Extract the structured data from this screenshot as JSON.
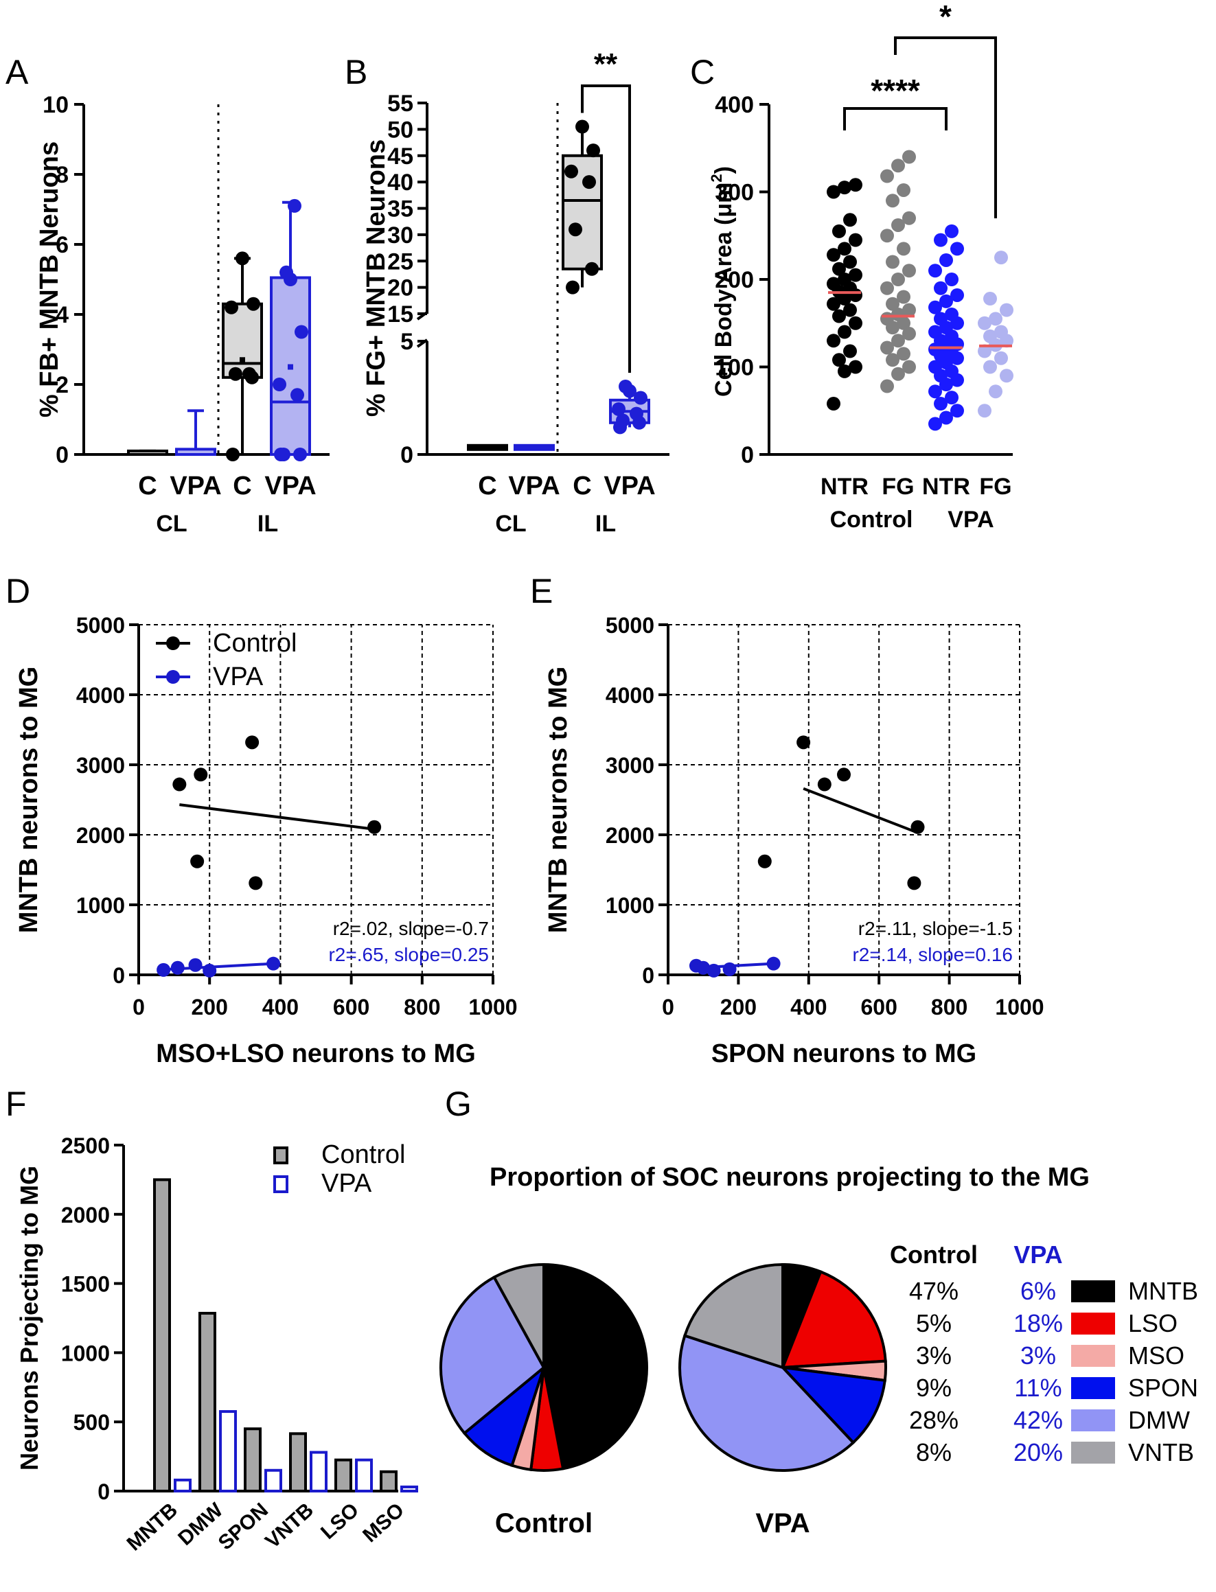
{
  "chart_data": [
    {
      "panel": "A",
      "type": "box",
      "ylabel": "% FB+ MNTB Neruons",
      "ylim": [
        0,
        10
      ],
      "yticks": [
        0,
        2,
        4,
        6,
        8,
        10
      ],
      "groups": [
        {
          "label": "C",
          "side": "CL",
          "color": "#000000",
          "fill": "#d9d9d9",
          "min": 0,
          "q1": 0,
          "median": 0,
          "q3": 0.1,
          "max": 0.1,
          "mean": 0.05,
          "points": []
        },
        {
          "label": "VPA",
          "side": "CL",
          "color": "#1f1fd6",
          "fill": "#b3b3f2",
          "min": 0,
          "q1": 0,
          "median": 0,
          "q3": 0.15,
          "max": 1.25,
          "mean": 0.1,
          "points": []
        },
        {
          "label": "C",
          "side": "IL",
          "color": "#000000",
          "fill": "#d9d9d9",
          "min": 0,
          "q1": 2.2,
          "median": 2.6,
          "q3": 4.3,
          "max": 5.6,
          "mean": 2.7,
          "points": [
            0,
            2.2,
            2.3,
            2.3,
            4.2,
            4.3,
            5.6
          ]
        },
        {
          "label": "VPA",
          "side": "IL",
          "color": "#1f1fd6",
          "fill": "#b3b3f2",
          "min": 0,
          "q1": 0,
          "median": 1.5,
          "q3": 5.05,
          "max": 7.2,
          "mean": 2.5,
          "points": [
            0,
            0,
            0,
            1.7,
            2.0,
            3.5,
            5.0,
            5.2,
            7.1
          ]
        }
      ],
      "sides": [
        "CL",
        "IL"
      ]
    },
    {
      "panel": "B",
      "type": "box",
      "ylabel": "% FG+ MNTB Neurons",
      "yticks_low": [
        0,
        5
      ],
      "yticks_high": [
        15,
        20,
        25,
        30,
        35,
        40,
        45,
        50,
        55
      ],
      "significance": "**",
      "groups": [
        {
          "label": "C",
          "side": "CL",
          "color": "#000000",
          "fill": "#d9d9d9",
          "min": 0.3,
          "q1": 0.3,
          "median": 0.3,
          "q3": 0.4,
          "max": 0.4,
          "points": []
        },
        {
          "label": "VPA",
          "side": "CL",
          "color": "#1f1fd6",
          "fill": "#b3b3f2",
          "min": 0.3,
          "q1": 0.3,
          "median": 0.3,
          "q3": 0.4,
          "max": 0.4,
          "points": []
        },
        {
          "label": "C",
          "side": "IL",
          "color": "#000000",
          "fill": "#d9d9d9",
          "min": 20,
          "q1": 23.5,
          "median": 36.5,
          "q3": 45,
          "max": 50.5,
          "points": [
            20,
            23.5,
            31,
            40,
            42,
            46,
            50.5
          ]
        },
        {
          "label": "VPA",
          "side": "IL",
          "color": "#1f1fd6",
          "fill": "#b3b3f2",
          "min": 1.2,
          "q1": 1.4,
          "median": 1.9,
          "q3": 2.4,
          "max": 3.0,
          "points": [
            1.2,
            1.4,
            1.5,
            1.8,
            2.0,
            2.5,
            2.8,
            3.0
          ]
        }
      ],
      "sides": [
        "CL",
        "IL"
      ]
    },
    {
      "panel": "C",
      "type": "scatter",
      "ylabel": "Cell Body  Area (μm",
      "ylabel_sup": "2",
      "ylabel_close": ")",
      "ylim": [
        0,
        400
      ],
      "yticks": [
        0,
        100,
        200,
        300,
        400
      ],
      "categories": [
        "NTR",
        "FG",
        "NTR",
        "FG"
      ],
      "group_labels": [
        "Control",
        "VPA"
      ],
      "significance": [
        "****",
        "*"
      ],
      "series": [
        {
          "name": "Control NTR",
          "color": "#000000",
          "mean": 185,
          "values": [
            58,
            95,
            100,
            108,
            118,
            130,
            140,
            150,
            158,
            165,
            172,
            178,
            182,
            186,
            190,
            195,
            200,
            205,
            212,
            220,
            228,
            235,
            245,
            255,
            268,
            300,
            305,
            308
          ]
        },
        {
          "name": "Control FG",
          "color": "#808080",
          "mean": 158,
          "values": [
            78,
            92,
            100,
            108,
            115,
            122,
            130,
            138,
            145,
            150,
            155,
            160,
            165,
            172,
            180,
            190,
            200,
            210,
            220,
            235,
            250,
            262,
            270,
            290,
            302,
            318,
            330,
            340
          ]
        },
        {
          "name": "VPA NTR",
          "color": "#1a1aff",
          "mean": 122,
          "values": [
            35,
            42,
            50,
            58,
            65,
            72,
            80,
            85,
            90,
            95,
            100,
            105,
            110,
            113,
            116,
            120,
            123,
            126,
            130,
            135,
            140,
            145,
            150,
            155,
            160,
            168,
            175,
            182,
            190,
            200,
            210,
            222,
            235,
            245,
            255
          ]
        },
        {
          "name": "VPA FG",
          "color": "#b0b3f0",
          "mean": 124,
          "values": [
            50,
            72,
            90,
            100,
            110,
            118,
            125,
            130,
            135,
            140,
            150,
            155,
            165,
            178,
            225
          ]
        }
      ]
    },
    {
      "panel": "D",
      "type": "scatter",
      "xlabel": "MSO+LSO neurons to MG",
      "ylabel": "MNTB neurons to MG",
      "xlim": [
        0,
        1000
      ],
      "ylim": [
        0,
        5000
      ],
      "xticks": [
        0,
        200,
        400,
        600,
        800,
        1000
      ],
      "yticks": [
        0,
        1000,
        2000,
        3000,
        4000,
        5000
      ],
      "legend": [
        "Control",
        "VPA"
      ],
      "series": [
        {
          "name": "Control",
          "color": "#000000",
          "points": [
            [
              115,
              2720
            ],
            [
              175,
              2860
            ],
            [
              320,
              3320
            ],
            [
              165,
              1620
            ],
            [
              330,
              1310
            ],
            [
              665,
              2110
            ]
          ],
          "fit": [
            [
              115,
              2430
            ],
            [
              665,
              2080
            ]
          ],
          "stats": "r2=.02, slope=-0.7"
        },
        {
          "name": "VPA",
          "color": "#1a1acc",
          "points": [
            [
              70,
              70
            ],
            [
              110,
              100
            ],
            [
              160,
              140
            ],
            [
              200,
              60
            ],
            [
              380,
              160
            ]
          ],
          "fit": [
            [
              70,
              75
            ],
            [
              380,
              160
            ]
          ],
          "stats": "r2=.65, slope=0.25"
        }
      ]
    },
    {
      "panel": "E",
      "type": "scatter",
      "xlabel": "SPON neurons to MG",
      "ylabel": "MNTB neurons to MG",
      "xlim": [
        0,
        1000
      ],
      "ylim": [
        0,
        5000
      ],
      "xticks": [
        0,
        200,
        400,
        600,
        800,
        1000
      ],
      "yticks": [
        0,
        1000,
        2000,
        3000,
        4000,
        5000
      ],
      "series": [
        {
          "name": "Control",
          "color": "#000000",
          "points": [
            [
              385,
              3320
            ],
            [
              445,
              2720
            ],
            [
              500,
              2860
            ],
            [
              275,
              1620
            ],
            [
              700,
              1310
            ],
            [
              710,
              2110
            ]
          ],
          "fit": [
            [
              385,
              2660
            ],
            [
              710,
              2030
            ]
          ],
          "stats": "r2=.11, slope=-1.5"
        },
        {
          "name": "VPA",
          "color": "#1a1acc",
          "points": [
            [
              80,
              130
            ],
            [
              100,
              100
            ],
            [
              130,
              60
            ],
            [
              175,
              80
            ],
            [
              300,
              160
            ]
          ],
          "fit": [
            [
              80,
              100
            ],
            [
              300,
              160
            ]
          ],
          "stats": "r2=.14, slope=0.16"
        }
      ]
    },
    {
      "panel": "F",
      "type": "bar",
      "ylabel": "Neurons Projecting to MG",
      "ylim": [
        0,
        2500
      ],
      "yticks": [
        0,
        500,
        1000,
        1500,
        2000,
        2500
      ],
      "categories": [
        "MNTB",
        "DMW",
        "SPON",
        "VNTB",
        "LSO",
        "MSO"
      ],
      "series": [
        {
          "name": "Control",
          "color": "#000000",
          "fill": "#a6a6a6",
          "values": [
            2250,
            1285,
            450,
            415,
            225,
            140
          ]
        },
        {
          "name": "VPA",
          "color": "#1a1acc",
          "fill": "#ffffff",
          "values": [
            80,
            575,
            150,
            280,
            225,
            30
          ]
        }
      ]
    },
    {
      "panel": "G",
      "type": "pie",
      "title": "Proportion of SOC neurons projecting to the MG",
      "categories": [
        "MNTB",
        "LSO",
        "MSO",
        "SPON",
        "DMW",
        "VNTB"
      ],
      "colors": [
        "#000000",
        "#ee0000",
        "#f4aaa6",
        "#0010ee",
        "#9194f5",
        "#a3a3a8"
      ],
      "series": [
        {
          "name": "Control",
          "values": [
            47,
            5,
            3,
            9,
            28,
            8
          ],
          "labels": [
            "47%",
            "5%",
            "3%",
            "9%",
            "28%",
            "8%"
          ]
        },
        {
          "name": "VPA",
          "values": [
            6,
            18,
            3,
            11,
            42,
            20
          ],
          "labels": [
            "6%",
            "18%",
            "3%",
            "11%",
            "42%",
            "20%"
          ]
        }
      ]
    }
  ],
  "panel_letters": {
    "A": "A",
    "B": "B",
    "C": "C",
    "D": "D",
    "E": "E",
    "F": "F",
    "G": "G"
  }
}
